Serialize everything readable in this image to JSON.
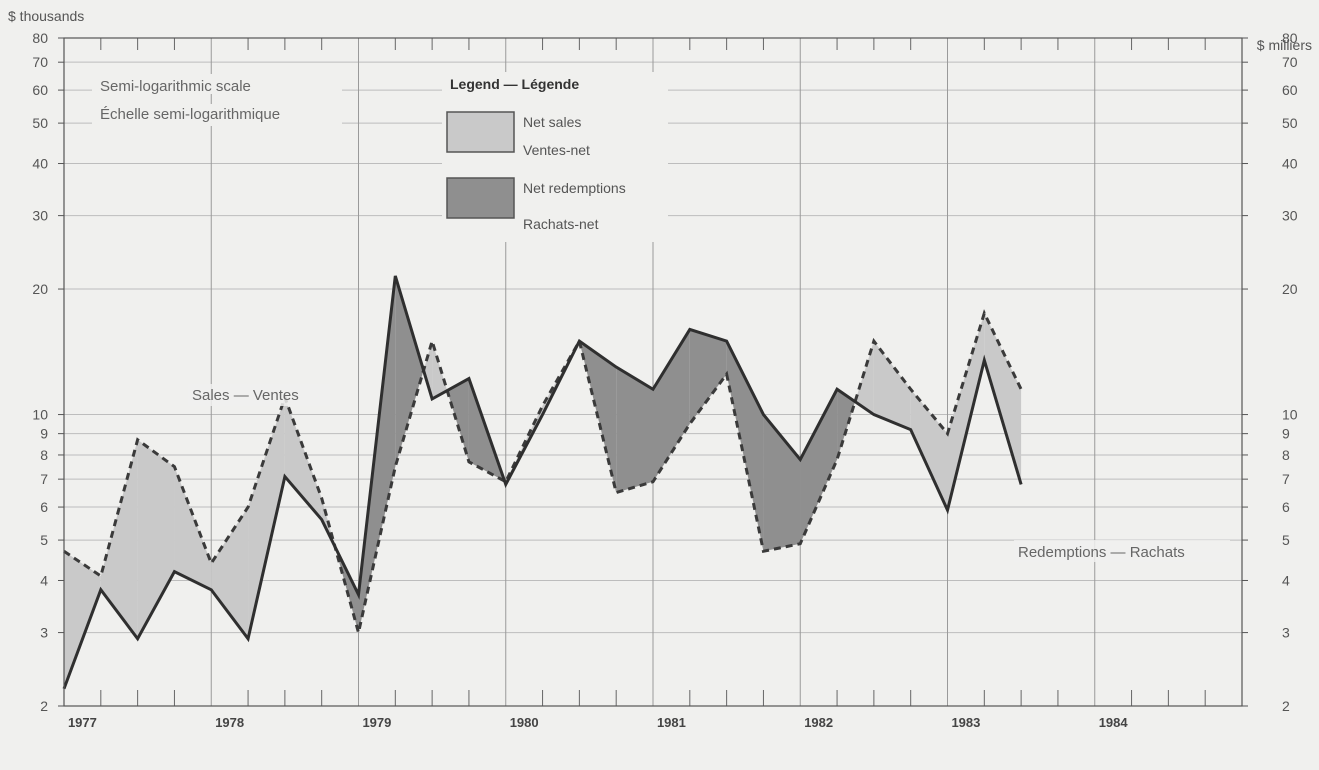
{
  "chart_data": {
    "type": "line",
    "y_scale": "log",
    "ylim": [
      2,
      80
    ],
    "y_ticks": [
      2,
      3,
      4,
      5,
      6,
      7,
      8,
      9,
      10,
      20,
      30,
      40,
      50,
      60,
      70,
      80
    ],
    "y_unit_left": "$ thousands",
    "y_unit_right": "$ milliers",
    "scale_note_en": "Semi-logarithmic scale",
    "scale_note_fr": "Échelle semi-logarithmique",
    "years": [
      "1977",
      "1978",
      "1979",
      "1980",
      "1981",
      "1982",
      "1983",
      "1984"
    ],
    "x_range": [
      1977.0,
      1985.0
    ],
    "grid": true,
    "legend": {
      "title": "Legend — Légende",
      "placement": "top-center",
      "items": [
        {
          "label_en": "Net sales",
          "label_fr": "Ventes-net",
          "color": "#c9c9c9"
        },
        {
          "label_en": "Net redemptions",
          "label_fr": "Rachats-net",
          "color": "#8f8f8f"
        }
      ]
    },
    "series": [
      {
        "name": "Sales — Ventes",
        "style": "dashed",
        "x": [
          1977.0,
          1977.25,
          1977.5,
          1977.75,
          1978.0,
          1978.25,
          1978.5,
          1978.75,
          1979.0,
          1979.25,
          1979.5,
          1979.75,
          1980.0,
          1980.25,
          1980.5,
          1980.75,
          1981.0,
          1981.25,
          1981.5,
          1981.75,
          1982.0,
          1982.25,
          1982.5,
          1982.75,
          1983.0,
          1983.25,
          1983.5,
          1983.75
        ],
        "values": [
          4.7,
          4.1,
          8.7,
          7.5,
          4.4,
          6.0,
          11.0,
          6.3,
          3.0,
          7.5,
          15.0,
          7.7,
          6.9,
          10.5,
          15.0,
          6.5,
          6.9,
          9.5,
          12.5,
          4.7,
          4.9,
          7.8,
          15.0,
          11.5,
          9.0,
          17.5,
          11.5,
          null
        ]
      },
      {
        "name": "Redemptions — Rachats",
        "style": "solid",
        "x": [
          1977.0,
          1977.25,
          1977.5,
          1977.75,
          1978.0,
          1978.25,
          1978.5,
          1978.75,
          1979.0,
          1979.25,
          1979.5,
          1979.75,
          1980.0,
          1980.25,
          1980.5,
          1980.75,
          1981.0,
          1981.25,
          1981.5,
          1981.75,
          1982.0,
          1982.25,
          1982.5,
          1982.75,
          1983.0,
          1983.25,
          1983.5,
          1983.75
        ],
        "values": [
          2.2,
          3.8,
          2.9,
          4.2,
          3.8,
          2.9,
          7.1,
          5.6,
          3.7,
          21.5,
          10.9,
          12.2,
          6.8,
          10.0,
          15.0,
          13.0,
          11.5,
          16.0,
          15.0,
          10.0,
          7.8,
          11.5,
          10.0,
          9.2,
          5.9,
          13.5,
          6.8,
          null
        ]
      }
    ],
    "annotations": [
      {
        "text": "Sales — Ventes",
        "x": 1978.7,
        "y": 12.3
      },
      {
        "text": "Redemptions — Rachats",
        "x": 1983.0,
        "y": 5.3
      }
    ]
  }
}
